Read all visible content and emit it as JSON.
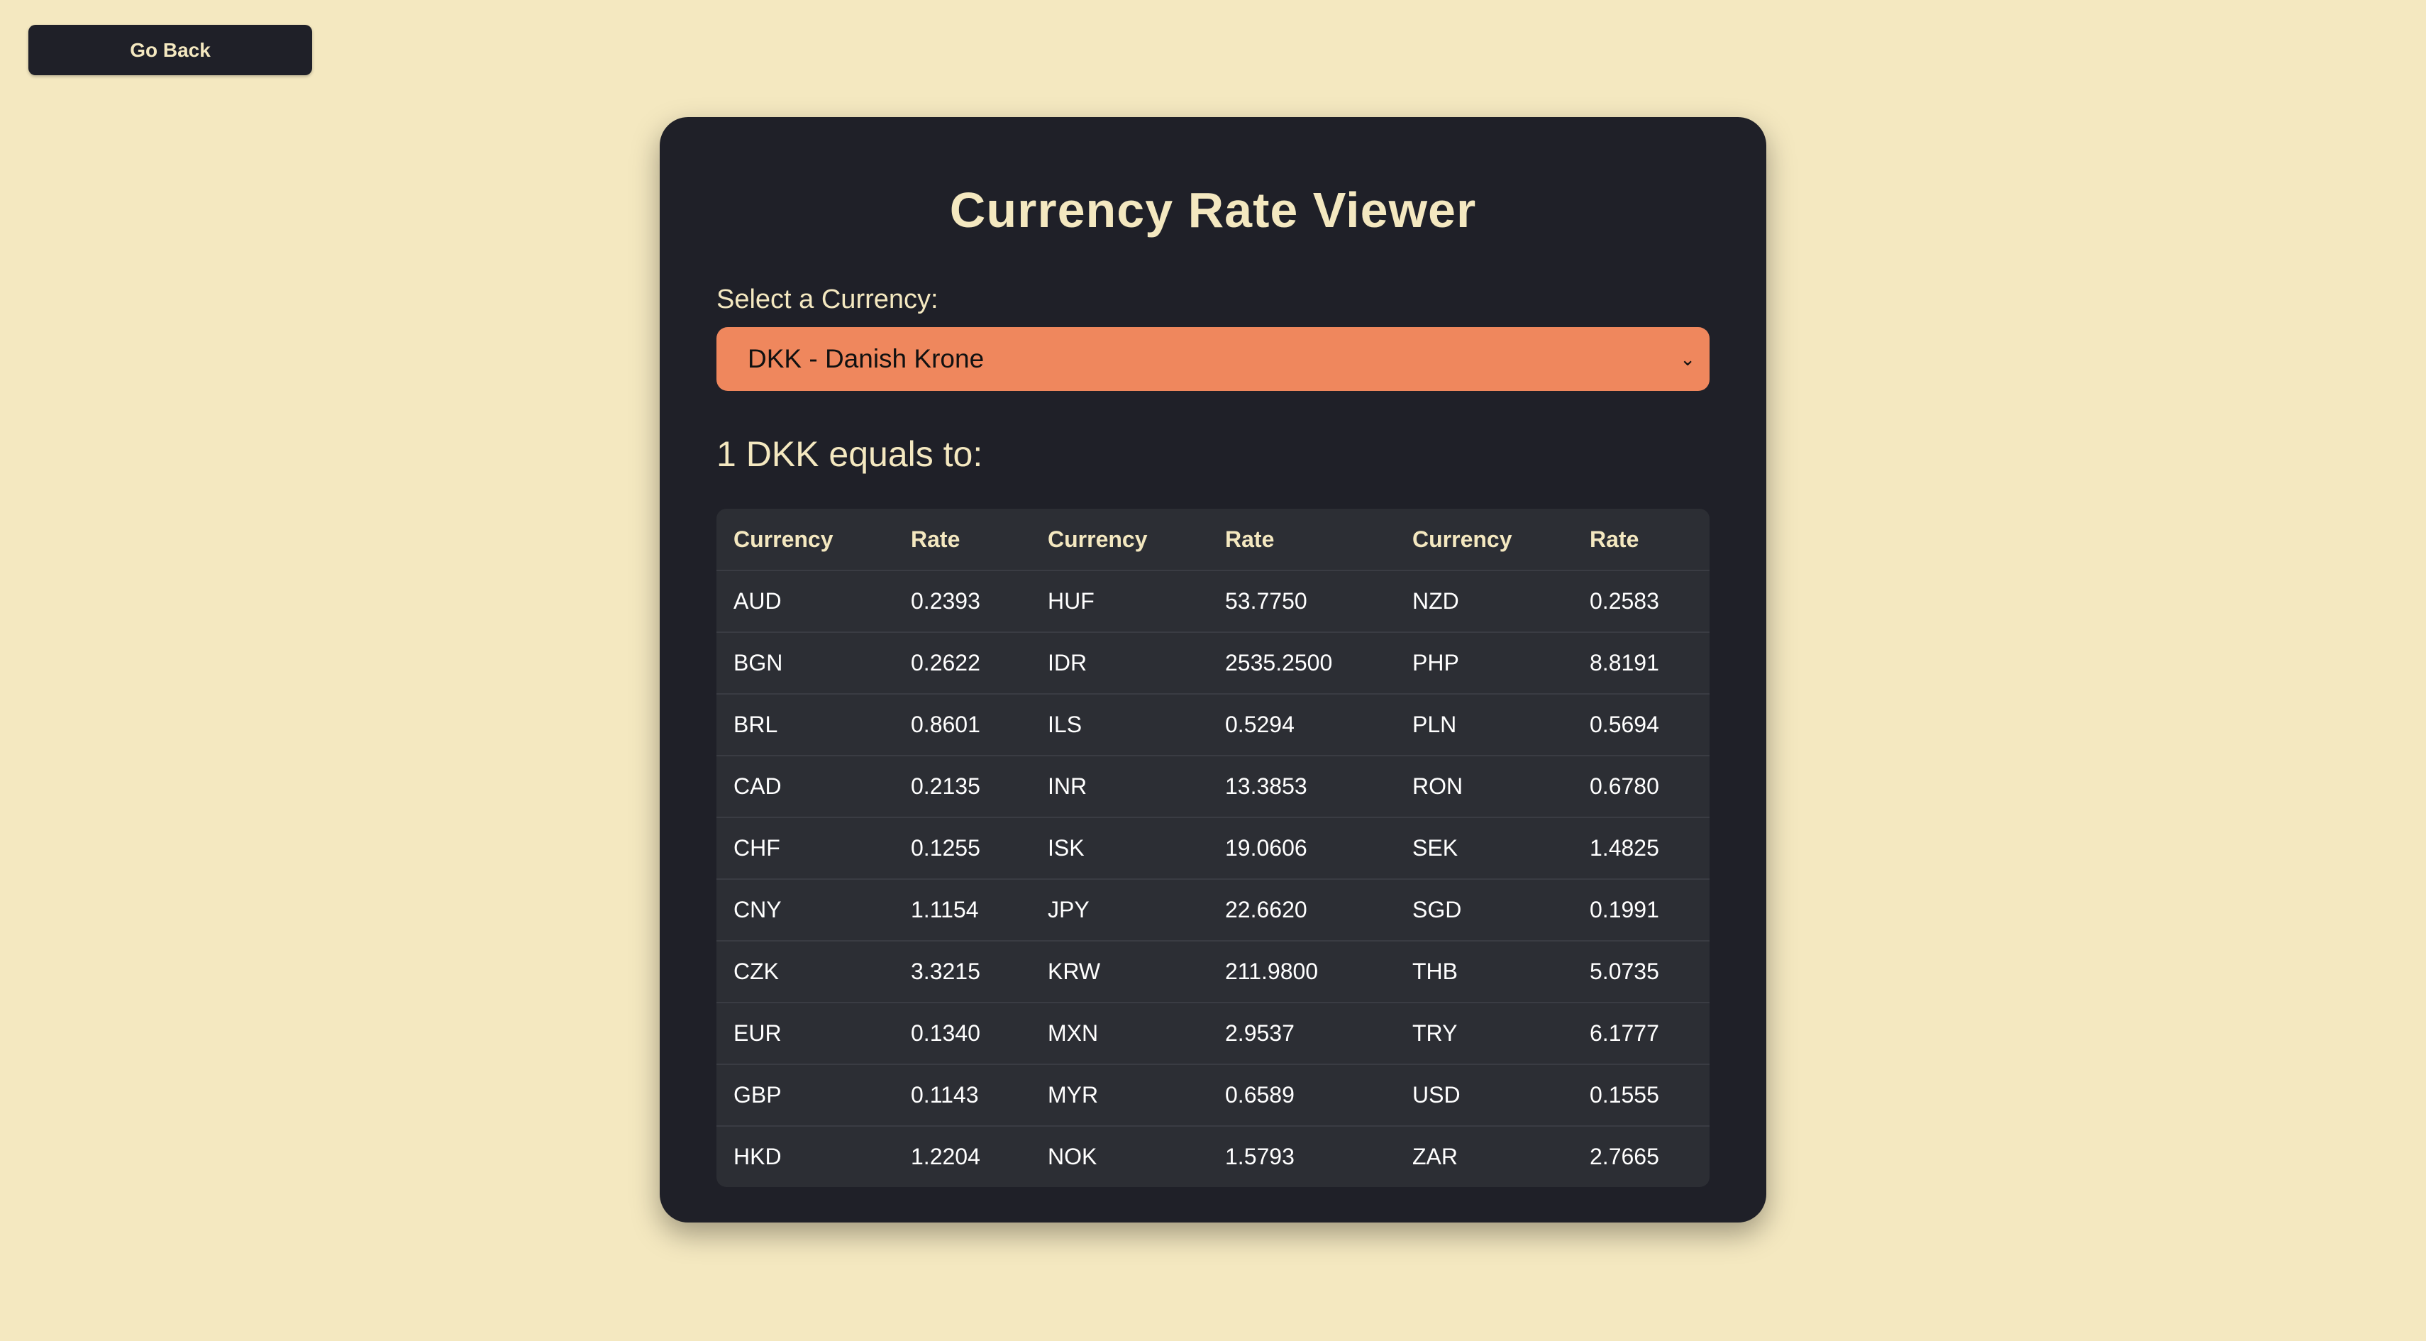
{
  "nav": {
    "go_back_label": "Go Back"
  },
  "app": {
    "title": "Currency Rate Viewer"
  },
  "selector": {
    "label": "Select a Currency:",
    "selected_value": "DKK - Danish Krone",
    "chevron": "⌄"
  },
  "result": {
    "heading": "1 DKK equals to:"
  },
  "table": {
    "headers": [
      "Currency",
      "Rate",
      "Currency",
      "Rate",
      "Currency",
      "Rate"
    ],
    "rows": [
      [
        "AUD",
        "0.2393",
        "HUF",
        "53.7750",
        "NZD",
        "0.2583"
      ],
      [
        "BGN",
        "0.2622",
        "IDR",
        "2535.2500",
        "PHP",
        "8.8191"
      ],
      [
        "BRL",
        "0.8601",
        "ILS",
        "0.5294",
        "PLN",
        "0.5694"
      ],
      [
        "CAD",
        "0.2135",
        "INR",
        "13.3853",
        "RON",
        "0.6780"
      ],
      [
        "CHF",
        "0.1255",
        "ISK",
        "19.0606",
        "SEK",
        "1.4825"
      ],
      [
        "CNY",
        "1.1154",
        "JPY",
        "22.6620",
        "SGD",
        "0.1991"
      ],
      [
        "CZK",
        "3.3215",
        "KRW",
        "211.9800",
        "THB",
        "5.0735"
      ],
      [
        "EUR",
        "0.1340",
        "MXN",
        "2.9537",
        "TRY",
        "6.1777"
      ],
      [
        "GBP",
        "0.1143",
        "MYR",
        "0.6589",
        "USD",
        "0.1555"
      ],
      [
        "HKD",
        "1.2204",
        "NOK",
        "1.5793",
        "ZAR",
        "2.7665"
      ]
    ]
  },
  "colors": {
    "page_background": "#f4e8c0",
    "card_background": "#1f2028",
    "accent_text": "#f4e8c0",
    "select_background": "#ef875d",
    "table_background": "#2c2e34"
  }
}
